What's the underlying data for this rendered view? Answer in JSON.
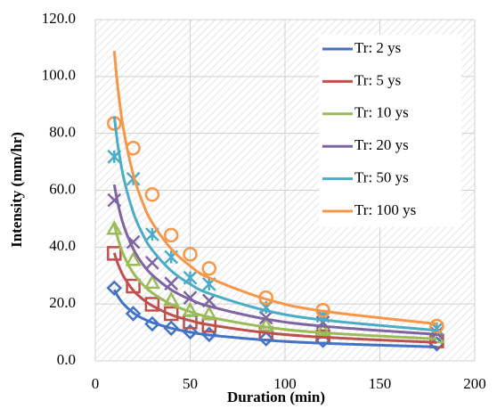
{
  "chart_data": {
    "type": "line",
    "x_label": "Duration (min)",
    "y_label": "Intensity (mm/hr)",
    "x": [
      10,
      20,
      30,
      40,
      50,
      60,
      90,
      120,
      180
    ],
    "fit_x": [
      10,
      12,
      15,
      20,
      25,
      30,
      40,
      50,
      60,
      90,
      120,
      180
    ],
    "xlim": [
      0,
      200
    ],
    "xticks": [
      0,
      50,
      100,
      150,
      200
    ],
    "ylim": [
      0,
      120
    ],
    "yticks": [
      {
        "value": 0,
        "label": "0.0"
      },
      {
        "value": 20,
        "label": "20.0"
      },
      {
        "value": 40,
        "label": "40.0"
      },
      {
        "value": 60,
        "label": "60.0"
      },
      {
        "value": 80,
        "label": "80.0"
      },
      {
        "value": 100,
        "label": "100.0"
      },
      {
        "value": 120,
        "label": "120.0"
      }
    ],
    "grid": true,
    "legend": "upper right",
    "series": [
      {
        "name": "Tr: 2 ys",
        "color": "#4472c4",
        "marker": "diamond",
        "values": [
          25.6,
          16.6,
          13.0,
          11.5,
          10.2,
          9.3,
          7.8,
          7.2,
          6.0
        ],
        "fit": [
          25,
          22.6,
          19.9,
          16.9,
          14.9,
          13.5,
          11.5,
          10.1,
          9.1,
          7.3,
          6.2,
          4.9
        ]
      },
      {
        "name": "Tr: 5 ys",
        "color": "#c0504d",
        "marker": "square",
        "values": [
          37.8,
          26.3,
          19.9,
          16.6,
          13.7,
          12.5,
          9.6,
          8.5,
          7.0
        ],
        "fit": [
          38,
          34.0,
          29.6,
          24.8,
          21.7,
          19.4,
          16.2,
          14.2,
          12.7,
          9.9,
          8.3,
          6.5
        ]
      },
      {
        "name": "Tr: 10 ys",
        "color": "#9bbb59",
        "marker": "triangle",
        "values": [
          46.5,
          35.5,
          27.5,
          21.5,
          17.8,
          16.5,
          12.5,
          10.8,
          8.3
        ],
        "fit": [
          48,
          42.8,
          37.1,
          30.9,
          26.9,
          23.9,
          19.9,
          17.3,
          15.4,
          11.9,
          9.9,
          7.7
        ]
      },
      {
        "name": "Tr: 20 ys",
        "color": "#8064a2",
        "marker": "x",
        "values": [
          56.5,
          41.8,
          34.5,
          27.2,
          22.2,
          21.2,
          15.2,
          13.5,
          9.8
        ],
        "fit": [
          62,
          55.0,
          47.5,
          39.4,
          34.0,
          30.2,
          25.0,
          21.6,
          19.2,
          14.7,
          12.2,
          9.3
        ]
      },
      {
        "name": "Tr: 50 ys",
        "color": "#4bacc6",
        "marker": "star",
        "values": [
          71.8,
          64.0,
          44.5,
          36.5,
          29.2,
          27.0,
          18.8,
          15.8,
          11.4
        ],
        "fit": [
          86,
          75.4,
          64.2,
          52.2,
          44.5,
          39.0,
          31.7,
          27.0,
          23.7,
          17.7,
          14.4,
          10.7
        ]
      },
      {
        "name": "Tr: 100 ys",
        "color": "#f79646",
        "marker": "circle",
        "values": [
          83.5,
          74.8,
          58.5,
          44.2,
          37.5,
          32.5,
          22.2,
          17.8,
          12.2
        ],
        "fit": [
          109,
          95.3,
          80.9,
          65.5,
          55.6,
          48.6,
          39.4,
          33.4,
          29.2,
          21.7,
          17.5,
          13.0
        ]
      }
    ]
  }
}
